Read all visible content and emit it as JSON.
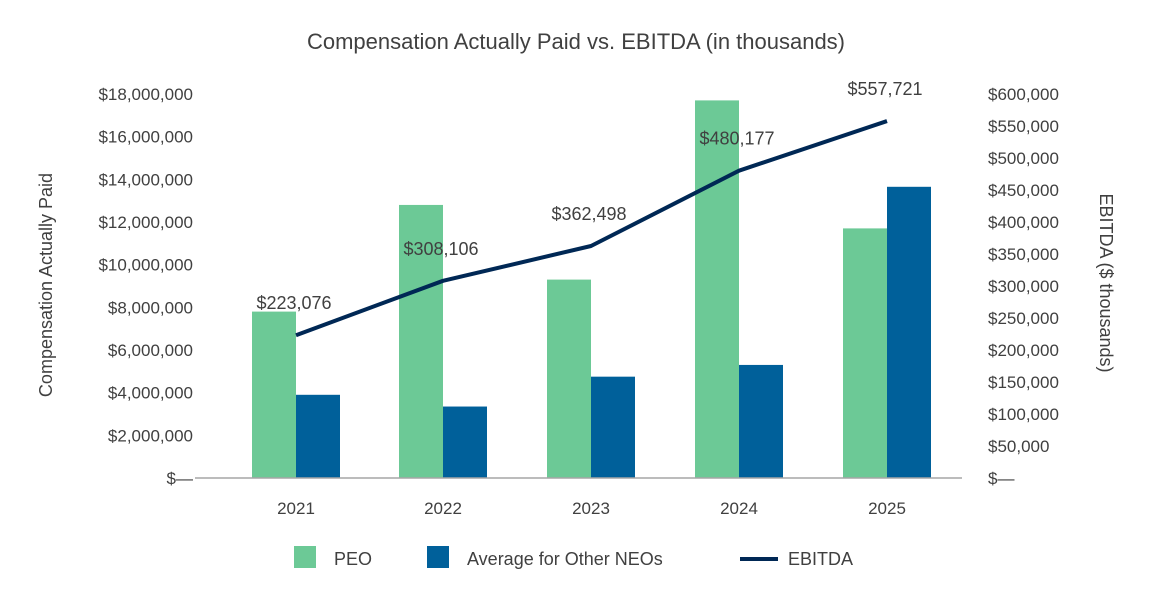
{
  "chart_data": {
    "type": "bar",
    "title": "Compensation Actually Paid vs. EBITDA (in thousands)",
    "categories": [
      "2021",
      "2022",
      "2023",
      "2024",
      "2025"
    ],
    "ylabel": "Compensation Actually Paid",
    "ylabel_right": "EBITDA ($ thousands)",
    "ylim": [
      0,
      18000000
    ],
    "ylim_right": [
      0,
      600000
    ],
    "yticks": [
      {
        "value": 0,
        "label": "$—"
      },
      {
        "value": 2000000,
        "label": "$2,000,000"
      },
      {
        "value": 4000000,
        "label": "$4,000,000"
      },
      {
        "value": 6000000,
        "label": "$6,000,000"
      },
      {
        "value": 8000000,
        "label": "$8,000,000"
      },
      {
        "value": 10000000,
        "label": "$10,000,000"
      },
      {
        "value": 12000000,
        "label": "$12,000,000"
      },
      {
        "value": 14000000,
        "label": "$14,000,000"
      },
      {
        "value": 16000000,
        "label": "$16,000,000"
      },
      {
        "value": 18000000,
        "label": "$18,000,000"
      }
    ],
    "yticks_right": [
      {
        "value": 0,
        "label": "$—"
      },
      {
        "value": 50000,
        "label": "$50,000"
      },
      {
        "value": 100000,
        "label": "$100,000"
      },
      {
        "value": 150000,
        "label": "$150,000"
      },
      {
        "value": 200000,
        "label": "$200,000"
      },
      {
        "value": 250000,
        "label": "$250,000"
      },
      {
        "value": 300000,
        "label": "$300,000"
      },
      {
        "value": 350000,
        "label": "$350,000"
      },
      {
        "value": 400000,
        "label": "$400,000"
      },
      {
        "value": 450000,
        "label": "$450,000"
      },
      {
        "value": 500000,
        "label": "$500,000"
      },
      {
        "value": 550000,
        "label": "$550,000"
      },
      {
        "value": 600000,
        "label": "$600,000"
      }
    ],
    "series": [
      {
        "name": "PEO",
        "kind": "bar",
        "color": "#6cc996",
        "values": [
          7800000,
          12800000,
          9300000,
          17700000,
          11700000
        ]
      },
      {
        "name": "Average for Other NEOs",
        "kind": "bar",
        "color": "#00609a",
        "values": [
          3900000,
          3350000,
          4750000,
          5300000,
          13650000
        ]
      },
      {
        "name": "EBITDA",
        "kind": "line",
        "axis": "right",
        "color": "#002855",
        "values": [
          223076,
          308106,
          362498,
          480177,
          557721
        ],
        "labels": [
          "$223,076",
          "$308,106",
          "$362,498",
          "$480,177",
          "$557,721"
        ]
      }
    ],
    "legend_position": "bottom"
  }
}
